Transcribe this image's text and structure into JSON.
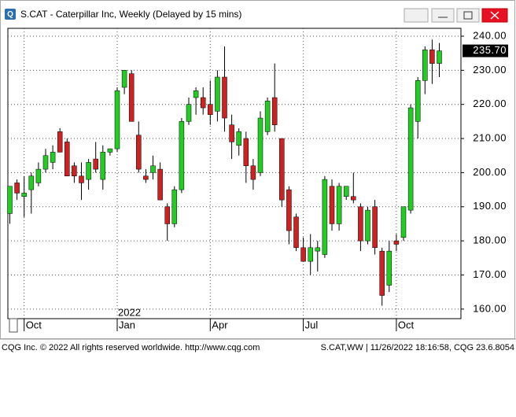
{
  "window_title": "S.CAT - Caterpillar Inc, Weekly (Delayed by 15 mins)",
  "chart_data": {
    "type": "candlestick",
    "categories": [
      null,
      null,
      "Oct",
      null,
      null,
      null,
      null,
      null,
      null,
      null,
      null,
      null,
      null,
      null,
      null,
      "Jan",
      null,
      null,
      null,
      null,
      null,
      null,
      null,
      null,
      null,
      null,
      null,
      null,
      "Apr",
      null,
      null,
      null,
      null,
      null,
      null,
      null,
      null,
      null,
      null,
      null,
      null,
      "Jul",
      null,
      null,
      null,
      null,
      null,
      null,
      null,
      null,
      null,
      null,
      null,
      null,
      "Oct",
      null,
      null,
      null,
      null,
      null,
      null
    ],
    "year_label": "2022",
    "open": [
      188,
      197,
      193,
      195,
      197,
      201,
      203,
      212,
      209,
      202,
      199,
      198,
      204,
      198,
      206,
      207,
      225,
      229,
      211,
      199,
      200,
      201,
      190,
      185,
      195,
      215,
      222,
      222,
      220,
      218,
      228,
      214,
      208,
      210,
      202,
      200,
      212,
      222,
      210,
      195,
      187,
      178,
      174,
      177,
      176,
      196,
      185,
      193,
      193,
      190,
      180,
      190,
      177,
      167,
      180,
      181,
      189,
      215,
      227,
      236,
      232
    ],
    "high": [
      196,
      198,
      199,
      200,
      203,
      207,
      208,
      213,
      210,
      203,
      203,
      204,
      209,
      208,
      207,
      225,
      230,
      230,
      215,
      201,
      205,
      203,
      191,
      196,
      216,
      222,
      225,
      225,
      227,
      230,
      237,
      217,
      213,
      212,
      204,
      218,
      222,
      232,
      210,
      196,
      188,
      181,
      182,
      180,
      199,
      198,
      197,
      196,
      200,
      191,
      190,
      192,
      178,
      180,
      182,
      190,
      220,
      228,
      237,
      239,
      238
    ],
    "low": [
      185,
      192,
      187,
      188,
      196,
      200,
      201,
      206,
      199,
      197,
      192,
      195,
      200,
      195,
      205,
      206,
      223,
      215,
      200,
      197,
      198,
      192,
      180,
      184,
      194,
      214,
      217,
      217,
      214,
      215,
      212,
      204,
      205,
      197,
      195,
      199,
      211,
      212,
      190,
      179,
      177,
      174,
      170,
      171,
      175,
      183,
      183,
      192,
      191,
      177,
      179,
      176,
      161,
      165,
      177,
      180,
      188,
      210,
      223,
      226,
      228
    ],
    "close": [
      196,
      194,
      194,
      199,
      201,
      205,
      206,
      206,
      199,
      199,
      197,
      203,
      201,
      206,
      207,
      224,
      230,
      215,
      201,
      198,
      202,
      192,
      185,
      195,
      215,
      220,
      224,
      219,
      217,
      228,
      216,
      209,
      212,
      202,
      198,
      216,
      221,
      214,
      192,
      183,
      178,
      174,
      178,
      178,
      198,
      185,
      196,
      196,
      192,
      180,
      189,
      178,
      164,
      177,
      179,
      190,
      219,
      227,
      236,
      232,
      235.7
    ],
    "up_color": "#22cc22",
    "down_color": "#cc2222",
    "last": {
      "value": 235.7,
      "label": "235.70"
    },
    "ylim": [
      157.2,
      242.3
    ],
    "yticks": [
      {
        "value": 160,
        "label": "160.00"
      },
      {
        "value": 170,
        "label": "170.00"
      },
      {
        "value": 180,
        "label": "180.00"
      },
      {
        "value": 190,
        "label": "190.00"
      },
      {
        "value": 200,
        "label": "200.00"
      },
      {
        "value": 210,
        "label": "210.00"
      },
      {
        "value": 220,
        "label": "220.00"
      },
      {
        "value": 230,
        "label": "230.00"
      },
      {
        "value": 240,
        "label": "240.00"
      }
    ],
    "grid": true
  },
  "status_left": "CQG Inc. © 2022 All rights reserved worldwide. http://www.cqg.com",
  "status_right": "S.CAT,WW | 11/26/2022 18:16:58, CQG 23.6.8054"
}
